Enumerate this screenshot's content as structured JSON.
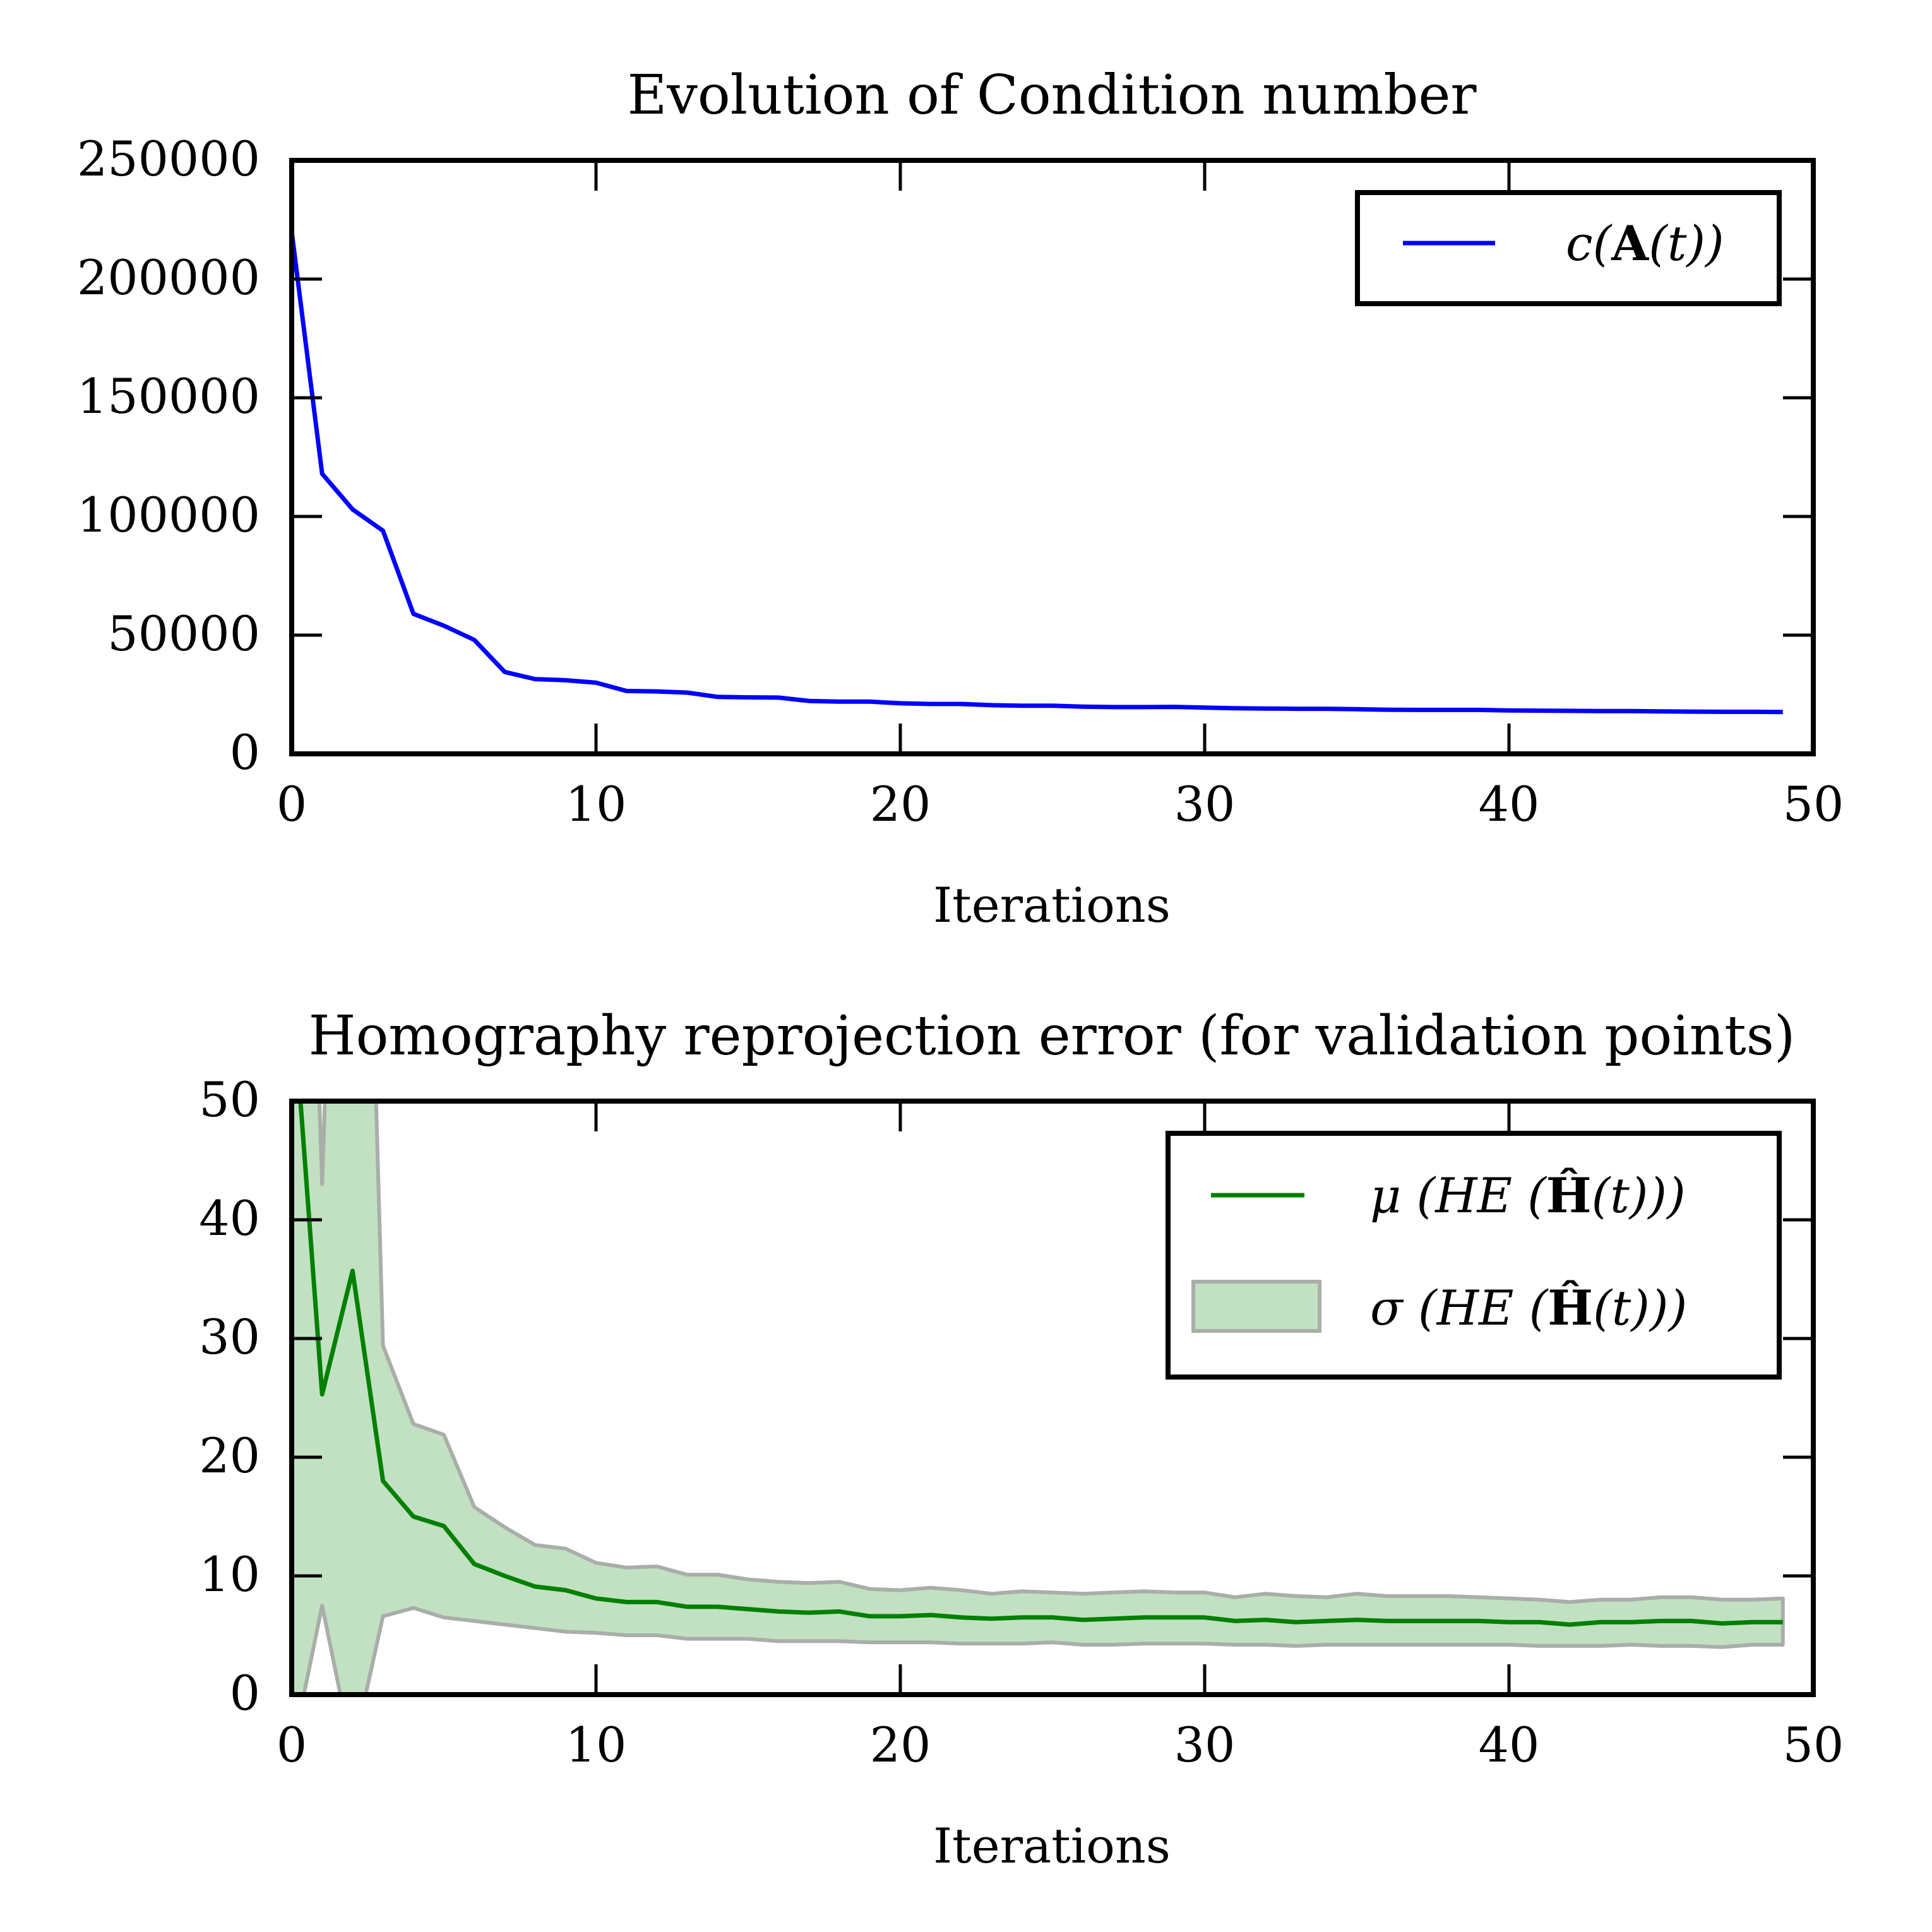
{
  "colors": {
    "condition_line": "#0000ff",
    "mean_line": "#008000",
    "std_fill": "#c2e1c2",
    "std_edge": "#a9aea9",
    "frame": "#000000",
    "background": "#ffffff"
  },
  "chart_data": [
    {
      "type": "line",
      "title": "Evolution of Condition number",
      "xlabel": "Iterations",
      "ylabel": "",
      "xlim": [
        0,
        50
      ],
      "ylim": [
        0,
        250000
      ],
      "xticks": [
        "0",
        "10",
        "20",
        "30",
        "40",
        "50"
      ],
      "yticks": [
        "0",
        "50000",
        "100000",
        "150000",
        "200000",
        "250000"
      ],
      "grid": false,
      "legend_position": "top-right",
      "series": [
        {
          "name": "c(A(t))",
          "legend": {
            "pre": "c(",
            "bold": "A",
            "post": "(t))"
          },
          "x": [
            0,
            1,
            2,
            3,
            4,
            5,
            6,
            7,
            8,
            9,
            10,
            11,
            12,
            13,
            14,
            15,
            16,
            17,
            18,
            19,
            20,
            21,
            22,
            23,
            24,
            25,
            26,
            27,
            28,
            29,
            30,
            31,
            32,
            33,
            34,
            35,
            36,
            37,
            38,
            39,
            40,
            41,
            42,
            43,
            44,
            45,
            46,
            47,
            48,
            49
          ],
          "y": [
            220000,
            118000,
            103000,
            94000,
            59000,
            54000,
            48000,
            34500,
            31500,
            31000,
            30000,
            26500,
            26300,
            25800,
            24000,
            23800,
            23700,
            22300,
            22000,
            22000,
            21300,
            21000,
            21000,
            20500,
            20300,
            20300,
            19900,
            19700,
            19700,
            19800,
            19500,
            19200,
            19100,
            19000,
            19000,
            18800,
            18600,
            18500,
            18500,
            18500,
            18300,
            18200,
            18100,
            18000,
            18000,
            17900,
            17800,
            17700,
            17700,
            17600
          ]
        }
      ]
    },
    {
      "type": "line",
      "title": "Homography reprojection error (for validation points)",
      "xlabel": "Iterations",
      "ylabel": "",
      "xlim": [
        0,
        50
      ],
      "ylim": [
        0,
        50
      ],
      "xticks": [
        "0",
        "10",
        "20",
        "30",
        "40",
        "50"
      ],
      "yticks": [
        "0",
        "10",
        "20",
        "30",
        "40",
        "50"
      ],
      "grid": false,
      "legend_position": "top-right",
      "series": [
        {
          "name": "μ(HE(Ĥ(t)))",
          "kind": "line",
          "legend": {
            "pre": "μ (HE (",
            "bold": "Ĥ",
            "post": "(t)))"
          },
          "x": [
            0,
            1,
            2,
            3,
            4,
            5,
            6,
            7,
            8,
            9,
            10,
            11,
            12,
            13,
            14,
            15,
            16,
            17,
            18,
            19,
            20,
            21,
            22,
            23,
            24,
            25,
            26,
            27,
            28,
            29,
            30,
            31,
            32,
            33,
            34,
            35,
            36,
            37,
            38,
            39,
            40,
            41,
            42,
            43,
            44,
            45,
            46,
            47,
            48,
            49
          ],
          "y": [
            60,
            25.3,
            35.7,
            18,
            15,
            14.2,
            11,
            10,
            9.1,
            8.8,
            8.1,
            7.8,
            7.8,
            7.4,
            7.4,
            7.2,
            7,
            6.9,
            7,
            6.6,
            6.6,
            6.7,
            6.5,
            6.4,
            6.5,
            6.5,
            6.3,
            6.4,
            6.5,
            6.5,
            6.5,
            6.2,
            6.3,
            6.1,
            6.2,
            6.3,
            6.2,
            6.2,
            6.2,
            6.2,
            6.1,
            6.1,
            5.9,
            6.1,
            6.1,
            6.2,
            6.2,
            6.0,
            6.1,
            6.1
          ]
        },
        {
          "name": "σ(HE(Ĥ(t)))",
          "kind": "band",
          "legend": {
            "pre": "σ (HE (",
            "bold": "Ĥ",
            "post": "(t)))"
          },
          "x": [
            0,
            1,
            2,
            3,
            4,
            5,
            6,
            7,
            8,
            9,
            10,
            11,
            12,
            13,
            14,
            15,
            16,
            17,
            18,
            19,
            20,
            21,
            22,
            23,
            24,
            25,
            26,
            27,
            28,
            29,
            30,
            31,
            32,
            33,
            34,
            35,
            36,
            37,
            38,
            39,
            40,
            41,
            42,
            43,
            44,
            45,
            46,
            47,
            48,
            49
          ],
          "upper": [
            120,
            43,
            120,
            29.4,
            22.8,
            21.9,
            15.8,
            14.1,
            12.6,
            12.3,
            11.1,
            10.7,
            10.8,
            10.1,
            10.1,
            9.7,
            9.5,
            9.4,
            9.5,
            8.9,
            8.8,
            9,
            8.8,
            8.5,
            8.7,
            8.6,
            8.5,
            8.6,
            8.7,
            8.6,
            8.6,
            8.2,
            8.5,
            8.3,
            8.2,
            8.5,
            8.3,
            8.3,
            8.3,
            8.2,
            8.1,
            8.0,
            7.8,
            8.0,
            8.0,
            8.2,
            8.2,
            8.0,
            8.0,
            8.1
          ],
          "lower": [
            -5,
            7.5,
            -5,
            6.6,
            7.3,
            6.5,
            6.2,
            5.9,
            5.6,
            5.3,
            5.2,
            5,
            5,
            4.7,
            4.7,
            4.7,
            4.5,
            4.5,
            4.5,
            4.4,
            4.4,
            4.4,
            4.3,
            4.3,
            4.3,
            4.4,
            4.2,
            4.2,
            4.3,
            4.3,
            4.3,
            4.2,
            4.2,
            4.1,
            4.2,
            4.2,
            4.2,
            4.2,
            4.2,
            4.2,
            4.2,
            4.1,
            4.1,
            4.1,
            4.2,
            4.1,
            4.1,
            4.0,
            4.2,
            4.2
          ]
        }
      ]
    }
  ]
}
